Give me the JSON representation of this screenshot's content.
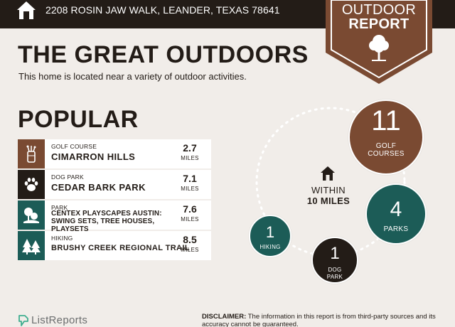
{
  "header": {
    "address": "2208 ROSIN JAW WALK, LEANDER, TEXAS 78641",
    "badge_line1": "OUTDOOR",
    "badge_line2": "REPORT"
  },
  "title": "THE GREAT OUTDOORS",
  "subtitle": "This home is located near a variety of outdoor activities.",
  "popular": {
    "heading": "POPULAR",
    "items": [
      {
        "category": "GOLF COURSE",
        "name": "CIMARRON HILLS",
        "distance": "2.7",
        "unit": "MILES",
        "icon": "golf-bag-icon",
        "color": "#7a4a32"
      },
      {
        "category": "DOG PARK",
        "name": "CEDAR BARK PARK",
        "distance": "7.1",
        "unit": "MILES",
        "icon": "paw-icon",
        "color": "#231c17"
      },
      {
        "category": "PARK",
        "name": "CENTEX PLAYSCAPES AUSTIN: SWING SETS, TREE HOUSES, PLAYSETS",
        "distance": "7.6",
        "unit": "MILES",
        "icon": "park-icon",
        "color": "#1c5c57"
      },
      {
        "category": "HIKING",
        "name": "BRUSHY CREEK REGIONAL TRAIL",
        "distance": "8.5",
        "unit": "MILES",
        "icon": "pine-trees-icon",
        "color": "#1c5c57"
      }
    ]
  },
  "summary": {
    "center_line1": "WITHIN",
    "center_line2": "10 MILES",
    "golf": {
      "count": "11",
      "label": "GOLF COURSES",
      "color": "#7a4a32"
    },
    "parks": {
      "count": "4",
      "label": "PARKS",
      "color": "#1c5c57"
    },
    "hiking": {
      "count": "1",
      "label": "HIKING",
      "color": "#1c5c57"
    },
    "dog_park": {
      "count": "1",
      "label": "DOG PARK",
      "color": "#231c17"
    }
  },
  "footer": {
    "brand": "ListReports",
    "disclaimer_label": "DISCLAIMER:",
    "disclaimer_text": " The information in this report is from third-party sources and its accuracy cannot be guaranteed."
  }
}
